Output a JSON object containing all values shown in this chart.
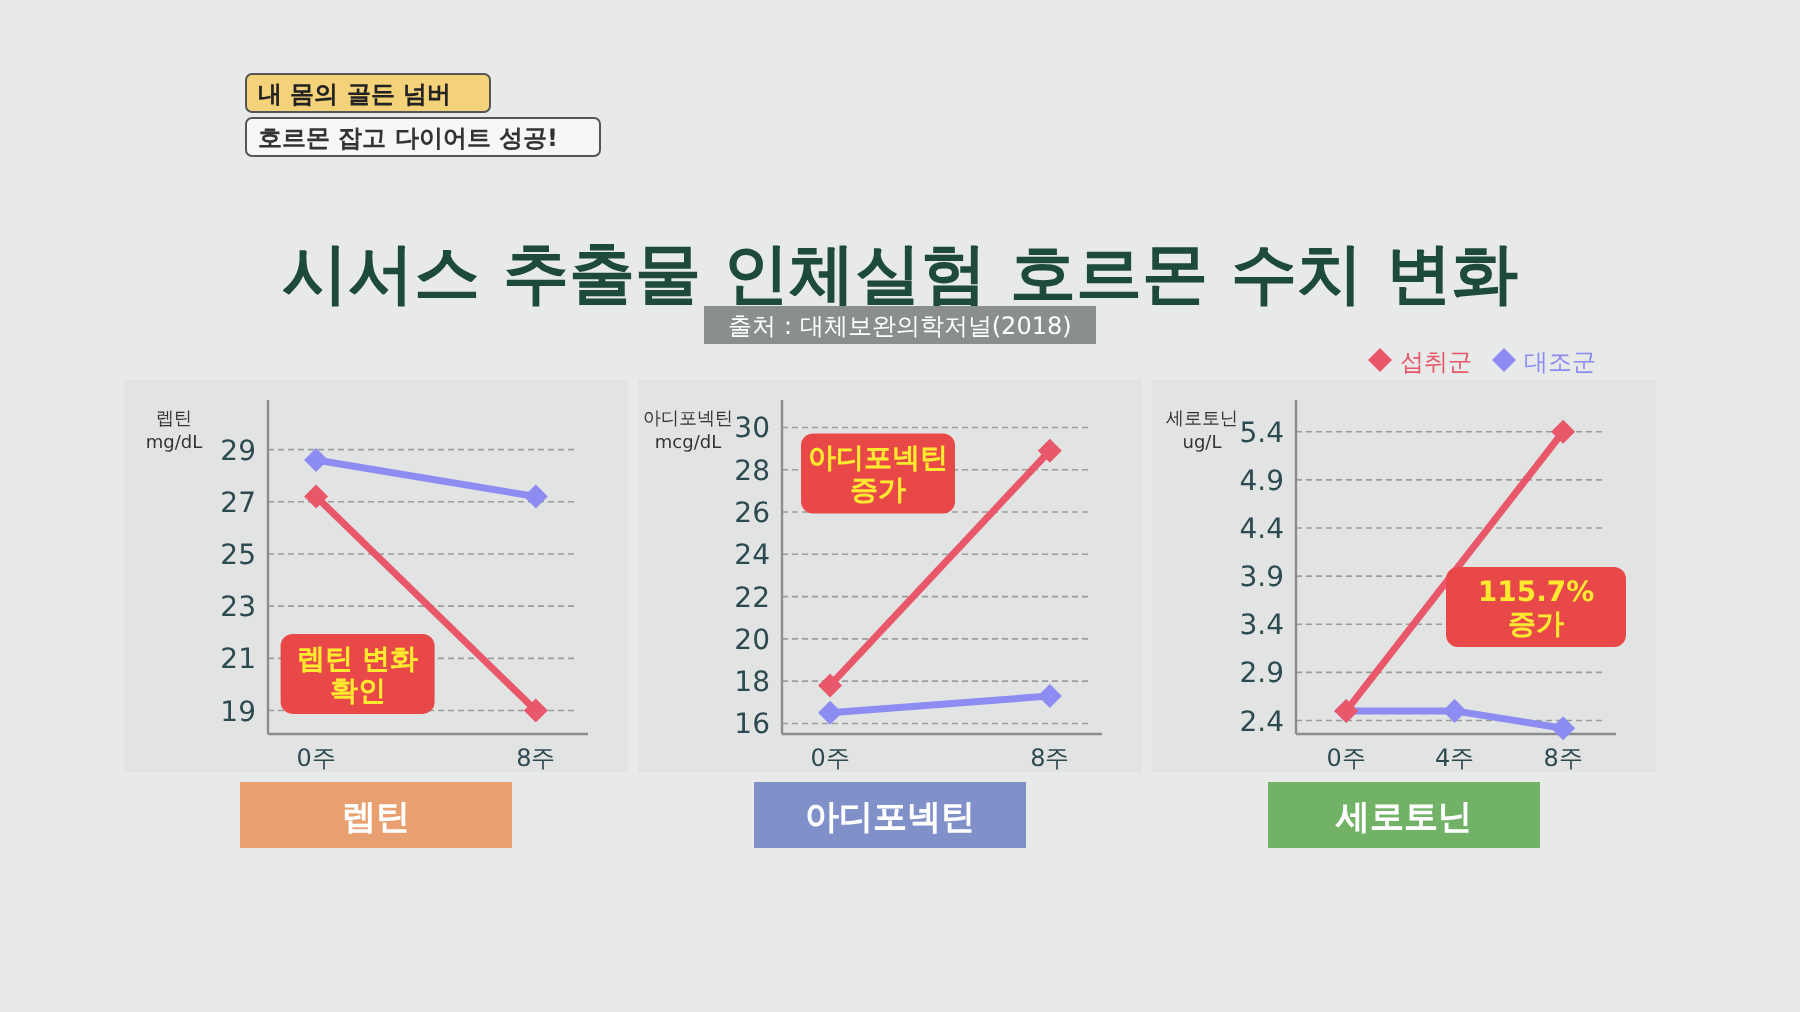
{
  "chart_data": [
    {
      "type": "line",
      "title": "시서스 추출물 인체실험 호르몬 수치 변화",
      "annotations": [
        "내 몸의 골든 넘버",
        "호르몬 잡고 다이어트 성공!",
        "렙틴 변화\n확인"
      ],
      "xlabel": "렙틴",
      "ylabel": "렙틴\nmg/dL",
      "marker": "diamond",
      "grid": "y",
      "xlim": [
        -1.75,
        9.9
      ],
      "xticks": [
        {
          "value": 0,
          "label": "0주"
        },
        {
          "value": 8,
          "label": "8주"
        }
      ],
      "ylim": [
        18.1,
        30.9
      ],
      "yticks": [
        19,
        21,
        23,
        25,
        27,
        29
      ],
      "series": [
        {
          "color": "#e8586a",
          "x": [
            0,
            8
          ],
          "values": [
            27.2,
            19.0
          ]
        },
        {
          "color": "#8c8cf2",
          "x": [
            0,
            8
          ],
          "values": [
            28.6,
            27.2
          ]
        }
      ]
    },
    {
      "type": "line",
      "subtitle": "출처 : 대체보완의학저널(2018)",
      "annotations": [
        "아디포넥틴\n증가"
      ],
      "xlabel": "아디포넥틴",
      "ylabel": "아디포넥틴\nmcg/dL",
      "marker": "diamond",
      "grid": "y",
      "xlim": [
        -1.75,
        9.9
      ],
      "xticks": [
        {
          "value": 0,
          "label": "0주"
        },
        {
          "value": 8,
          "label": "8주"
        }
      ],
      "ylim": [
        15.5,
        31.3
      ],
      "yticks": [
        16,
        18,
        20,
        22,
        24,
        26,
        28,
        30
      ],
      "series": [
        {
          "color": "#e8586a",
          "x": [
            0,
            8
          ],
          "values": [
            17.8,
            28.9
          ]
        },
        {
          "color": "#8c8cf2",
          "x": [
            0,
            8
          ],
          "values": [
            16.5,
            17.3
          ]
        }
      ]
    },
    {
      "type": "line",
      "annotations": [
        "115.7%\n증가"
      ],
      "xlabel": "세로토닌",
      "ylabel": "세로토닌\nug/L",
      "marker": "diamond",
      "grid": "y",
      "legend": "top right",
      "xlim": [
        -1.85,
        9.95
      ],
      "xticks": [
        {
          "value": 0,
          "label": "0주"
        },
        {
          "value": 4,
          "label": "4주"
        },
        {
          "value": 8,
          "label": "8주"
        }
      ],
      "ylim": [
        2.26,
        5.73
      ],
      "yticks": [
        2.4,
        2.9,
        3.4,
        3.9,
        4.4,
        4.9,
        5.4
      ],
      "series": [
        {
          "name": "섭취군",
          "color": "#e8586a",
          "x": [
            0,
            8
          ],
          "values": [
            2.5,
            5.4
          ]
        },
        {
          "name": "대조군",
          "color": "#8c8cf2",
          "x": [
            0,
            4,
            8
          ],
          "values": [
            2.5,
            2.5,
            2.32
          ]
        }
      ]
    }
  ]
}
